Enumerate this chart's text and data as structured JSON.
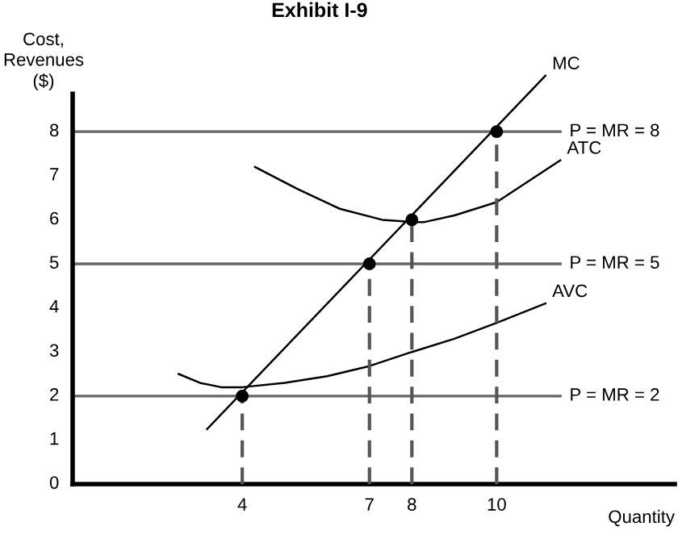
{
  "chart_data": {
    "type": "line",
    "title": "Exhibit I-9",
    "xlabel": "Quantity",
    "ylabel": "Cost,\nRevenues\n($)",
    "xlim": [
      0,
      14.2
    ],
    "ylim": [
      0,
      10
    ],
    "xticks": [
      4,
      7,
      8,
      10
    ],
    "yticks": [
      0,
      1,
      2,
      3,
      4,
      5,
      6,
      7,
      8
    ],
    "grid": false,
    "legend": false,
    "series": [
      {
        "name": "MC",
        "color": "#000000",
        "x": [
          3.17,
          11.15
        ],
        "values": [
          1.25,
          9.27
        ]
      },
      {
        "name": "ATC",
        "color": "#000000",
        "x": [
          4.3,
          5.3,
          6.3,
          7.3,
          8,
          8.3,
          9,
          10,
          11.5
        ],
        "values": [
          7.2,
          6.7,
          6.25,
          6.0,
          5.95,
          5.95,
          6.1,
          6.4,
          7.35
        ]
      },
      {
        "name": "AVC",
        "color": "#000000",
        "x": [
          2.5,
          3,
          3.5,
          4,
          5,
          6,
          7,
          8,
          9,
          10,
          11.15
        ],
        "values": [
          2.5,
          2.3,
          2.2,
          2.2,
          2.3,
          2.45,
          2.68,
          3.0,
          3.3,
          3.66,
          4.1
        ]
      },
      {
        "type": "scatter",
        "color": "#000000",
        "marker": "circle",
        "x": [
          4,
          7,
          8,
          10
        ],
        "values": [
          2,
          5,
          6,
          8
        ]
      },
      {
        "color": "#555555",
        "line_style": "dashed",
        "x": [
          4,
          4
        ],
        "values": [
          0,
          2
        ]
      },
      {
        "color": "#555555",
        "line_style": "dashed",
        "x": [
          7,
          7
        ],
        "values": [
          0,
          5
        ]
      },
      {
        "color": "#555555",
        "line_style": "dashed",
        "x": [
          8,
          8
        ],
        "values": [
          0,
          6
        ]
      },
      {
        "color": "#555555",
        "line_style": "dashed",
        "x": [
          10,
          10
        ],
        "values": [
          0,
          8
        ]
      }
    ],
    "ref_lines": [
      {
        "axis": "y",
        "value": 8,
        "label": "P = MR = 8",
        "color": "#666666"
      },
      {
        "axis": "y",
        "value": 5,
        "label": "P = MR = 5",
        "color": "#666666"
      },
      {
        "axis": "y",
        "value": 2,
        "label": "P = MR = 2",
        "color": "#666666"
      }
    ]
  }
}
